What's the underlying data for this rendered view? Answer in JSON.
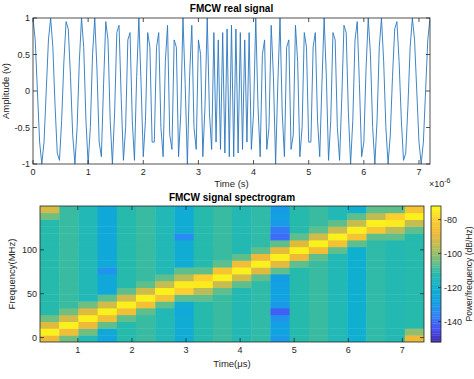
{
  "chart_data": [
    {
      "type": "line",
      "title": "FMCW real signal",
      "x_label": "Time (s)",
      "y_label": "Amplitude (v)",
      "x_multiplier": {
        "base": "×10",
        "exponent": "-6"
      },
      "color": "#2a77be",
      "grid": false,
      "xlim": [
        0,
        7.2
      ],
      "xticks": [
        0,
        1,
        2,
        3,
        4,
        5,
        6,
        7
      ],
      "ylim": [
        -1,
        1
      ],
      "yticks": [
        -1,
        -0.5,
        0,
        0.5,
        1
      ],
      "x": [
        0,
        0.04,
        0.08,
        0.12,
        0.16,
        0.2,
        0.24,
        0.28,
        0.32,
        0.36,
        0.4,
        0.44,
        0.48,
        0.52,
        0.56,
        0.6,
        0.64,
        0.68,
        0.72,
        0.76,
        0.8,
        0.84,
        0.88,
        0.92,
        0.96,
        1,
        1.04,
        1.08,
        1.12,
        1.16,
        1.2,
        1.24,
        1.28,
        1.32,
        1.36,
        1.4,
        1.44,
        1.48,
        1.52,
        1.56,
        1.6,
        1.64,
        1.68,
        1.72,
        1.76,
        1.8,
        1.84,
        1.88,
        1.92,
        1.96,
        2,
        2.04,
        2.08,
        2.12,
        2.16,
        2.2,
        2.24,
        2.28,
        2.32,
        2.36,
        2.4,
        2.44,
        2.48,
        2.52,
        2.56,
        2.6,
        2.64,
        2.68,
        2.72,
        2.76,
        2.8,
        2.84,
        2.88,
        2.92,
        2.96,
        3,
        3.04,
        3.08,
        3.12,
        3.16,
        3.2,
        3.24,
        3.28,
        3.32,
        3.36,
        3.4,
        3.44,
        3.48,
        3.52,
        3.56,
        3.6,
        3.64,
        3.68,
        3.72,
        3.76,
        3.8,
        3.84,
        3.88,
        3.92,
        3.96,
        4,
        4.04,
        4.08,
        4.12,
        4.16,
        4.2,
        4.24,
        4.28,
        4.32,
        4.36,
        4.4,
        4.44,
        4.48,
        4.52,
        4.56,
        4.6,
        4.64,
        4.68,
        4.72,
        4.76,
        4.8,
        4.84,
        4.88,
        4.92,
        4.96,
        5,
        5.04,
        5.08,
        5.12,
        5.16,
        5.2,
        5.24,
        5.28,
        5.32,
        5.36,
        5.4,
        5.44,
        5.48,
        5.52,
        5.56,
        5.6,
        5.64,
        5.68,
        5.72,
        5.76,
        5.8,
        5.84,
        5.88,
        5.92,
        5.96,
        6,
        6.04,
        6.08,
        6.12,
        6.16,
        6.2,
        6.24,
        6.28,
        6.32,
        6.36,
        6.4,
        6.44,
        6.48,
        6.52,
        6.56,
        6.6,
        6.64,
        6.68,
        6.72,
        6.76,
        6.8,
        6.84,
        6.88,
        6.92,
        6.96,
        7,
        7.04,
        7.08,
        7.12,
        7.16,
        7.2
      ],
      "values": [
        1,
        0.7,
        0,
        -0.7,
        -1,
        -0.7,
        0,
        0.7,
        1,
        0.6,
        -0.2,
        -0.85,
        -0.95,
        -0.4,
        0.4,
        0.95,
        0.85,
        0.2,
        -0.6,
        -1,
        -0.5,
        0.4,
        1,
        0.6,
        -0.4,
        -1,
        -0.5,
        0.5,
        1,
        0.3,
        -0.7,
        -0.9,
        0.1,
        0.95,
        0.7,
        -0.4,
        -1,
        -0.3,
        0.8,
        0.9,
        -0.1,
        -0.95,
        -0.5,
        0.7,
        0.8,
        -0.4,
        -0.95,
        0.2,
        1,
        0.1,
        -0.9,
        -0.4,
        0.8,
        0.6,
        -0.7,
        -0.7,
        0.6,
        0.8,
        -0.5,
        -0.9,
        0.4,
        0.9,
        -0.6,
        -0.8,
        0.7,
        0.6,
        -0.9,
        -0.3,
        1,
        0.1,
        -1,
        0.2,
        0.9,
        -0.5,
        -0.8,
        0.7,
        0.5,
        -0.9,
        -0.2,
        1,
        -0.3,
        -0.8,
        0.8,
        -0.7,
        0.7,
        -0.8,
        0.8,
        -0.85,
        0.85,
        -0.9,
        0.9,
        -0.9,
        0.85,
        -0.85,
        0.8,
        -0.8,
        0.7,
        -0.7,
        0.8,
        -0.8,
        -0.3,
        1,
        -0.2,
        -0.9,
        0.5,
        0.7,
        -0.8,
        -0.5,
        0.9,
        0.2,
        -1,
        0.1,
        1,
        -0.3,
        -0.9,
        0.6,
        0.7,
        -0.8,
        -0.6,
        0.9,
        0.4,
        -0.9,
        -0.5,
        0.8,
        0.6,
        -0.7,
        -0.7,
        0.6,
        0.8,
        -0.4,
        -0.9,
        0.1,
        1,
        0.2,
        -0.95,
        -0.4,
        0.8,
        0.7,
        -0.5,
        -0.95,
        -0.1,
        0.9,
        0.8,
        -0.3,
        -1,
        -0.4,
        0.7,
        0.95,
        0.1,
        -0.9,
        -0.7,
        0.3,
        1,
        0.5,
        -0.5,
        -1,
        -0.4,
        0.6,
        1,
        0.4,
        -0.5,
        -1,
        -0.6,
        0.2,
        0.85,
        0.95,
        0.4,
        -0.4,
        -0.95,
        -0.85,
        -0.2,
        0.6,
        1,
        0.7,
        0,
        -0.7,
        -1,
        -0.7,
        0,
        0.7,
        1
      ]
    },
    {
      "type": "heatmap",
      "title": "FMCW signal spectrogram",
      "x_label": "Time(μs)",
      "y_label": "Frequency(MHz)",
      "grid": false,
      "xlim": [
        0.3,
        7.4
      ],
      "xticks": [
        1,
        2,
        3,
        4,
        5,
        6,
        7
      ],
      "ylim": [
        -5,
        150
      ],
      "yticks": [
        0,
        50,
        100
      ],
      "x": [
        0.4775,
        0.8325,
        1.1875,
        1.5425,
        1.8975,
        2.2525,
        2.6075,
        2.9625,
        3.3175,
        3.6725,
        4.0275,
        4.3825,
        4.7375,
        5.0925,
        5.4475,
        5.8025,
        6.1575,
        6.5125,
        6.8675,
        7.2225
      ],
      "y": [
        -1.125,
        6.625,
        14.375,
        22.125,
        29.875,
        37.625,
        45.375,
        53.125,
        60.875,
        68.625,
        76.375,
        84.125,
        91.875,
        99.625,
        107.375,
        115.125,
        122.875,
        130.625,
        138.375,
        146.125
      ],
      "values": [
        [
          -88,
          -104,
          -114,
          -126,
          -112,
          -110,
          -114,
          -122,
          -112,
          -110,
          -113,
          -111,
          -130,
          -112,
          -110,
          -114,
          -120,
          -111,
          -113,
          -88
        ],
        [
          -74,
          -86,
          -104,
          -124,
          -112,
          -110,
          -114,
          -122,
          -112,
          -110,
          -113,
          -111,
          -128,
          -112,
          -110,
          -114,
          -120,
          -111,
          -113,
          -100
        ],
        [
          -90,
          -74,
          -88,
          -106,
          -112,
          -110,
          -114,
          -122,
          -112,
          -110,
          -113,
          -111,
          -128,
          -112,
          -110,
          -114,
          -120,
          -111,
          -113,
          -112
        ],
        [
          -104,
          -92,
          -74,
          -86,
          -106,
          -110,
          -114,
          -122,
          -112,
          -110,
          -113,
          -111,
          -132,
          -112,
          -110,
          -114,
          -120,
          -111,
          -113,
          -112
        ],
        [
          -112,
          -104,
          -90,
          -74,
          -86,
          -106,
          -114,
          -124,
          -112,
          -110,
          -113,
          -111,
          -142,
          -112,
          -110,
          -114,
          -120,
          -111,
          -113,
          -112
        ],
        [
          -112,
          -110,
          -104,
          -92,
          -74,
          -85,
          -106,
          -122,
          -112,
          -110,
          -113,
          -111,
          -130,
          -112,
          -110,
          -114,
          -120,
          -111,
          -113,
          -112
        ],
        [
          -112,
          -110,
          -114,
          -106,
          -92,
          -74,
          -84,
          -106,
          -106,
          -110,
          -113,
          -111,
          -128,
          -112,
          -110,
          -114,
          -120,
          -111,
          -113,
          -112
        ],
        [
          -112,
          -110,
          -114,
          -124,
          -106,
          -93,
          -74,
          -80,
          -96,
          -106,
          -113,
          -111,
          -128,
          -112,
          -110,
          -114,
          -120,
          -111,
          -113,
          -112
        ],
        [
          -112,
          -110,
          -114,
          -124,
          -112,
          -106,
          -94,
          -75,
          -75,
          -94,
          -106,
          -111,
          -128,
          -112,
          -110,
          -114,
          -120,
          -111,
          -113,
          -112
        ],
        [
          -112,
          -110,
          -114,
          -124,
          -112,
          -110,
          -106,
          -96,
          -80,
          -74,
          -92,
          -106,
          -129,
          -112,
          -110,
          -114,
          -120,
          -111,
          -113,
          -112
        ],
        [
          -112,
          -110,
          -114,
          -132,
          -112,
          -110,
          -114,
          -106,
          -106,
          -84,
          -74,
          -90,
          -106,
          -112,
          -110,
          -114,
          -120,
          -111,
          -113,
          -112
        ],
        [
          -112,
          -110,
          -114,
          -124,
          -112,
          -110,
          -114,
          -122,
          -112,
          -106,
          -86,
          -74,
          -89,
          -106,
          -110,
          -114,
          -120,
          -111,
          -113,
          -112
        ],
        [
          -112,
          -110,
          -114,
          -124,
          -112,
          -110,
          -114,
          -122,
          -112,
          -110,
          -106,
          -88,
          -74,
          -88,
          -106,
          -114,
          -120,
          -111,
          -113,
          -112
        ],
        [
          -112,
          -110,
          -114,
          -124,
          -112,
          -110,
          -114,
          -122,
          -112,
          -110,
          -113,
          -106,
          -89,
          -74,
          -86,
          -106,
          -120,
          -111,
          -113,
          -112
        ],
        [
          -112,
          -110,
          -114,
          -124,
          -112,
          -110,
          -114,
          -122,
          -112,
          -110,
          -113,
          -111,
          -106,
          -90,
          -74,
          -85,
          -106,
          -111,
          -113,
          -112
        ],
        [
          -112,
          -110,
          -114,
          -124,
          -112,
          -110,
          -114,
          -134,
          -112,
          -110,
          -113,
          -111,
          -140,
          -106,
          -92,
          -74,
          -84,
          -106,
          -106,
          -112
        ],
        [
          -112,
          -110,
          -114,
          -124,
          -112,
          -110,
          -114,
          -122,
          -112,
          -110,
          -113,
          -111,
          -138,
          -112,
          -106,
          -93,
          -74,
          -83,
          -96,
          -106
        ],
        [
          -112,
          -110,
          -114,
          -124,
          -112,
          -110,
          -114,
          -122,
          -112,
          -110,
          -113,
          -111,
          -130,
          -112,
          -110,
          -106,
          -94,
          -74,
          -75,
          -94
        ],
        [
          -104,
          -110,
          -114,
          -124,
          -112,
          -110,
          -114,
          -122,
          -112,
          -110,
          -113,
          -111,
          -128,
          -112,
          -110,
          -114,
          -106,
          -95,
          -80,
          -74
        ],
        [
          -92,
          -110,
          -114,
          -124,
          -112,
          -110,
          -114,
          -122,
          -112,
          -110,
          -113,
          -111,
          -130,
          -112,
          -110,
          -114,
          -120,
          -106,
          -106,
          -84
        ]
      ],
      "colorbar": {
        "label": "Power/frequency (dB/Hz)",
        "range": [
          -152,
          -72
        ],
        "ticks": [
          -140,
          -120,
          -100,
          -80
        ]
      }
    }
  ]
}
